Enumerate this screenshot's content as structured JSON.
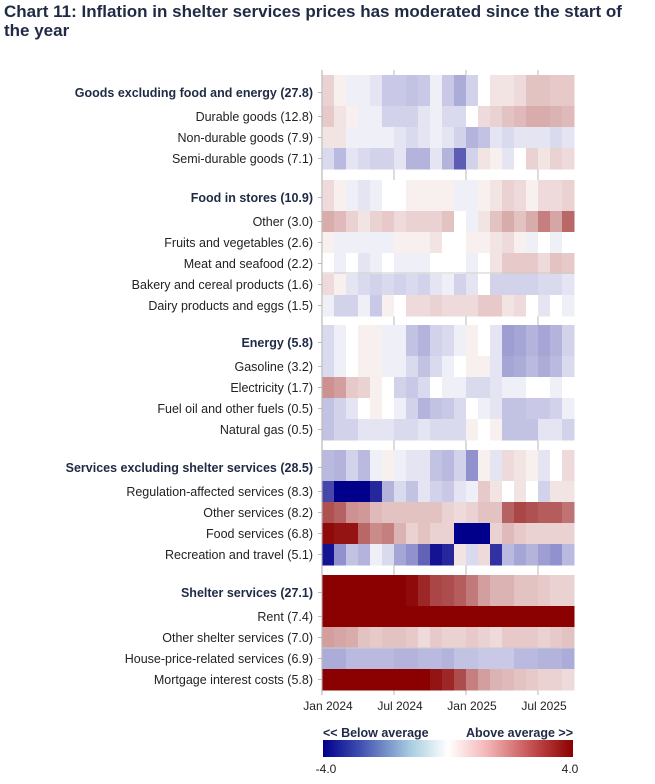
{
  "chart_data": {
    "type": "heatmap",
    "title": "Chart 11: Inflation in shelter services prices has moderated since the start of the year",
    "x": [
      "Jan 2024",
      "Feb 2024",
      "Mar 2024",
      "Apr 2024",
      "May 2024",
      "Jun 2024",
      "Jul 2024",
      "Aug 2024",
      "Sep 2024",
      "Oct 2024",
      "Nov 2024",
      "Dec 2024",
      "Jan 2025",
      "Feb 2025",
      "Mar 2025",
      "Apr 2025",
      "May 2025",
      "Jun 2025",
      "Jul 2025",
      "Aug 2025",
      "Sep 2025"
    ],
    "x_tick_labels": [
      "Jan 2024",
      "Jul 2024",
      "Jan 2025",
      "Jul 2025"
    ],
    "color_range": [
      -4.0,
      4.0
    ],
    "colors": {
      "low": "#00008b",
      "mid": "#ffffff",
      "high": "#8b0000"
    },
    "legend": {
      "low_label": "<< Below average",
      "high_label": "Above average >>",
      "min_label": "-4.0",
      "max_label": "4.0",
      "placement": "bottom"
    },
    "groups": [
      {
        "rows": [
          {
            "label": "Goods excluding food and energy (27.8)",
            "header": true,
            "values": [
              0.4,
              0.1,
              -0.1,
              -0.1,
              -0.2,
              -0.5,
              -0.5,
              -0.6,
              -0.5,
              -0.1,
              -0.5,
              -0.9,
              -0.4,
              0,
              0.2,
              0.2,
              0.3,
              0.6,
              0.6,
              0.5,
              0.5
            ]
          },
          {
            "label": "Durable goods (12.8)",
            "values": [
              0.5,
              0.2,
              0.1,
              -0.1,
              -0.1,
              -0.4,
              -0.4,
              -0.4,
              -0.2,
              -0.1,
              -0.3,
              -0.3,
              0,
              0.3,
              0.4,
              0.6,
              0.7,
              0.9,
              0.9,
              0.8,
              0.7
            ]
          },
          {
            "label": "Non-durable goods (7.9)",
            "values": [
              0.2,
              0.2,
              -0.1,
              -0.1,
              -0.1,
              -0.1,
              -0.2,
              -0.3,
              -0.2,
              -0.1,
              -0.2,
              -0.4,
              -0.8,
              -0.6,
              -0.2,
              -0.3,
              -0.2,
              -0.2,
              -0.2,
              -0.3,
              -0.2
            ]
          },
          {
            "label": "Semi-durable goods (7.1)",
            "values": [
              -0.3,
              -0.7,
              -0.2,
              -0.3,
              -0.4,
              -0.4,
              -0.2,
              -0.8,
              -0.8,
              -0.2,
              -0.8,
              -2.2,
              -0.4,
              0.2,
              0.1,
              -0.2,
              0,
              0.4,
              0.2,
              0.4,
              0.3
            ]
          }
        ]
      },
      {
        "rows": [
          {
            "label": "Food in stores (10.9)",
            "header": true,
            "values": [
              0.3,
              0.1,
              -0.1,
              -0.2,
              -0.1,
              0,
              0,
              0.1,
              0.1,
              0.1,
              0.1,
              -0.1,
              -0.1,
              0.1,
              0.2,
              0.4,
              0.3,
              0.1,
              0.3,
              0.3,
              0.4
            ]
          },
          {
            "label": "Other (3.0)",
            "values": [
              0.9,
              0.7,
              0.4,
              0.2,
              0.4,
              0.5,
              0.3,
              0.4,
              0.4,
              0.4,
              0.6,
              0,
              -0.1,
              0.2,
              0.6,
              0.9,
              0.6,
              0.9,
              1.6,
              1.0,
              2.0
            ]
          },
          {
            "label": "Fruits and vegetables (2.6)",
            "values": [
              0.1,
              -0.1,
              -0.1,
              -0.1,
              -0.1,
              -0.1,
              0.1,
              0.1,
              0.1,
              0.2,
              0,
              0,
              0.1,
              0.1,
              0.2,
              0.3,
              0.1,
              -0.1,
              0,
              -0.1,
              0
            ]
          },
          {
            "label": "Meat and seafood (2.2)",
            "values": [
              0,
              -0.1,
              0,
              -0.2,
              -0.1,
              0,
              -0.1,
              -0.1,
              -0.1,
              0,
              0,
              0,
              -0.1,
              0,
              0.2,
              0.5,
              0.5,
              0.5,
              0.3,
              0.6,
              0.5
            ]
          },
          {
            "label": "Bakery and cereal products (1.6)",
            "values": [
              0.3,
              0.1,
              -0.2,
              -0.3,
              -0.4,
              -0.3,
              -0.4,
              -0.3,
              -0.4,
              -0.2,
              -0.1,
              -0.4,
              -0.2,
              0,
              -0.4,
              -0.4,
              -0.4,
              -0.4,
              -0.3,
              -0.3,
              -0.2
            ]
          },
          {
            "label": "Dairy products and eggs (1.5)",
            "values": [
              -0.1,
              -0.4,
              -0.4,
              -0.1,
              -0.5,
              0.1,
              0,
              0.3,
              0.3,
              0.4,
              0.3,
              0.3,
              0.3,
              0.5,
              0.5,
              0.2,
              0.3,
              0,
              -0.2,
              0,
              -0.1
            ]
          }
        ]
      },
      {
        "rows": [
          {
            "label": "Energy (5.8)",
            "header": true,
            "values": [
              -0.3,
              -0.1,
              0,
              0.1,
              0.1,
              -0.1,
              -0.1,
              -0.6,
              -0.8,
              -0.4,
              -0.3,
              -0.1,
              0.1,
              0,
              -0.2,
              -1.1,
              -1.0,
              -0.8,
              -1.0,
              -0.8,
              -0.4
            ]
          },
          {
            "label": "Gasoline (3.2)",
            "values": [
              -0.3,
              -0.1,
              0,
              0.1,
              0.1,
              -0.1,
              -0.1,
              -0.3,
              -0.6,
              -0.3,
              -0.1,
              0,
              0.1,
              0.1,
              -0.2,
              -1.0,
              -0.9,
              -0.7,
              -0.9,
              -0.7,
              -0.3
            ]
          },
          {
            "label": "Electricity (1.7)",
            "values": [
              1.3,
              1.1,
              0.5,
              0.4,
              0.1,
              0,
              -0.4,
              -0.5,
              -0.3,
              0,
              -0.1,
              -0.1,
              -0.3,
              -0.3,
              -0.2,
              -0.1,
              -0.1,
              0,
              0,
              -0.1,
              0
            ]
          },
          {
            "label": "Fuel oil and other fuels (0.5)",
            "values": [
              -0.6,
              -0.4,
              -0.2,
              0,
              0.1,
              0,
              -0.1,
              -0.4,
              -0.8,
              -0.6,
              -0.5,
              -0.3,
              0,
              -0.1,
              -0.2,
              -0.6,
              -0.6,
              -0.5,
              -0.5,
              -0.4,
              -0.1
            ]
          },
          {
            "label": "Natural gas (0.5)",
            "values": [
              -0.6,
              -0.4,
              -0.4,
              -0.2,
              -0.2,
              -0.2,
              -0.3,
              -0.3,
              -0.2,
              -0.3,
              -0.3,
              -0.3,
              0.1,
              0,
              0.1,
              -0.6,
              -0.6,
              -0.6,
              -0.2,
              -0.2,
              -0.4
            ]
          }
        ]
      },
      {
        "rows": [
          {
            "label": "Services excluding shelter services (28.5)",
            "header": true,
            "values": [
              -0.7,
              -0.8,
              -0.4,
              -0.7,
              -0.1,
              0.1,
              -0.1,
              -0.2,
              -0.2,
              -0.6,
              -0.7,
              -0.4,
              -1.3,
              0.1,
              -0.2,
              0.3,
              0.2,
              0.1,
              -0.2,
              0,
              0.3
            ]
          },
          {
            "label": "Regulation-affected services (8.3)",
            "values": [
              -2.6,
              -4,
              -4,
              -4,
              -3.2,
              -0.8,
              -0.3,
              -0.6,
              -0.2,
              -0.4,
              -0.5,
              -0.2,
              -0.1,
              0.5,
              0.2,
              0,
              0.2,
              0,
              -0.4,
              0.2,
              0.2
            ]
          },
          {
            "label": "Other services (8.2)",
            "values": [
              2.4,
              2.1,
              1.3,
              1.2,
              0.7,
              0.6,
              0.6,
              0.6,
              0.6,
              0.6,
              0.4,
              0.3,
              0.4,
              0.6,
              0.6,
              2.1,
              2.6,
              2.4,
              2.2,
              2.2,
              1.8
            ]
          },
          {
            "label": "Food services (6.8)",
            "values": [
              3.8,
              3.6,
              3.6,
              2.0,
              1.4,
              1.6,
              0.8,
              0.4,
              0.6,
              0.4,
              0.4,
              -4,
              -4,
              -4,
              0.4,
              0.7,
              0.5,
              0.4,
              0.4,
              0.4,
              0.4
            ]
          },
          {
            "label": "Recreation and travel (5.1)",
            "values": [
              -3.6,
              -1.3,
              -0.6,
              -0.8,
              -0.1,
              -0.3,
              -1.0,
              -1.3,
              -2.1,
              -3.6,
              -3.2,
              0.2,
              -0.3,
              0.3,
              -3.0,
              -0.7,
              -1.0,
              -0.8,
              -1.1,
              -1.3,
              -0.7
            ]
          }
        ]
      },
      {
        "rows": [
          {
            "label": "Shelter services (27.1)",
            "header": true,
            "values": [
              4,
              4,
              4,
              4,
              4,
              4,
              4,
              3.8,
              3.2,
              2.6,
              2.5,
              2.2,
              1.7,
              1.1,
              0.8,
              0.8,
              0.6,
              0.6,
              0.5,
              0.4,
              0.4
            ]
          },
          {
            "label": "Rent (7.4)",
            "values": [
              4,
              4,
              4,
              4,
              4,
              4,
              4,
              4,
              4,
              4,
              4,
              4,
              4,
              4,
              4,
              4,
              4,
              4,
              4,
              4,
              4
            ]
          },
          {
            "label": "Other shelter services (7.0)",
            "values": [
              1.1,
              1.0,
              0.9,
              0.6,
              0.5,
              0.6,
              0.6,
              0.5,
              0.3,
              0.5,
              0.4,
              0.4,
              0.5,
              0.4,
              0.3,
              0.5,
              0.5,
              0.5,
              0.4,
              0.5,
              0.6
            ]
          },
          {
            "label": "House-price-related services (6.9)",
            "values": [
              -0.9,
              -0.9,
              -0.7,
              -0.7,
              -0.7,
              -0.7,
              -0.8,
              -0.8,
              -0.7,
              -0.7,
              -0.8,
              -0.6,
              -0.6,
              -0.5,
              -0.5,
              -0.5,
              -0.7,
              -0.7,
              -0.8,
              -0.8,
              -0.9
            ]
          },
          {
            "label": "Mortgage interest costs (5.8)",
            "values": [
              4,
              4,
              4,
              4,
              4,
              4,
              4,
              4,
              4,
              3.6,
              3.2,
              2.5,
              1.6,
              1.1,
              0.8,
              0.7,
              0.6,
              0.5,
              0.4,
              0.4,
              0.3
            ]
          }
        ]
      }
    ]
  }
}
